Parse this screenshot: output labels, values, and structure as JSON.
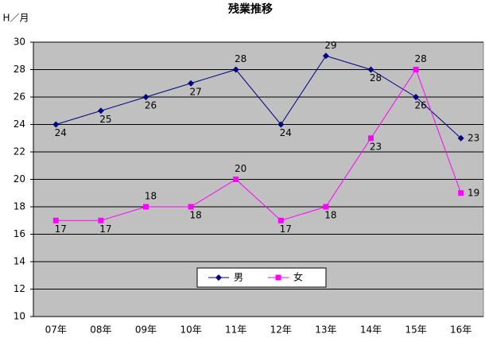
{
  "chart_data": {
    "type": "line",
    "title": "残業推移",
    "y_label": "H／月",
    "categories": [
      "07年",
      "08年",
      "09年",
      "10年",
      "11年",
      "12年",
      "13年",
      "14年",
      "15年",
      "16年"
    ],
    "series": [
      {
        "name": "男",
        "color": "#000080",
        "marker": "diamond",
        "values": [
          24,
          25,
          26,
          27,
          28,
          24,
          29,
          28,
          26,
          23
        ]
      },
      {
        "name": "女",
        "color": "#ff00ff",
        "marker": "square",
        "values": [
          17,
          17,
          18,
          18,
          20,
          17,
          18,
          23,
          28,
          19
        ]
      }
    ],
    "ylim": [
      10,
      30
    ],
    "yticks": [
      10,
      12,
      14,
      16,
      18,
      20,
      22,
      24,
      26,
      28,
      30
    ],
    "grid": true,
    "legend": "bottom"
  }
}
